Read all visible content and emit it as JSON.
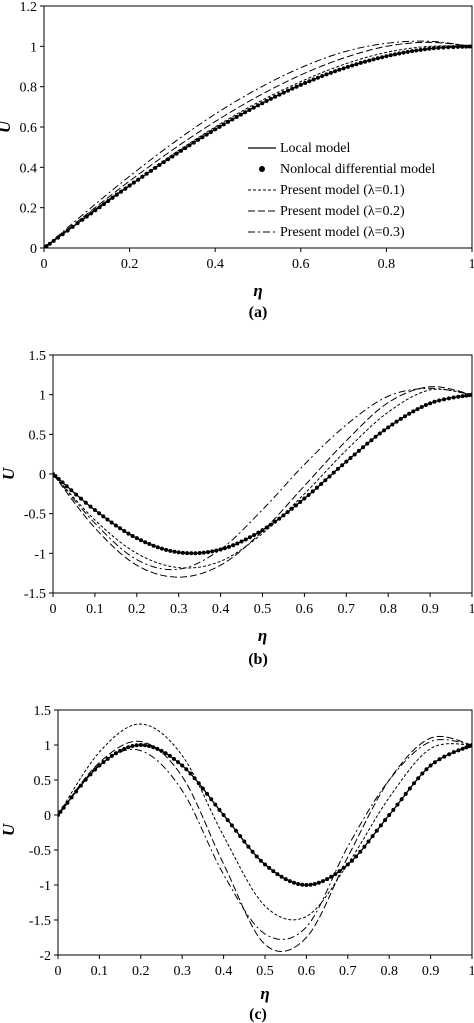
{
  "chart_data": [
    {
      "type": "line",
      "panel_label": "(a)",
      "xlabel": "η",
      "ylabel": "U",
      "xlim": [
        0,
        1
      ],
      "ylim": [
        0,
        1.2
      ],
      "xticks": [
        "0",
        "0.2",
        "0.4",
        "0.6",
        "0.8",
        "1"
      ],
      "yticks": [
        "0",
        "0.2",
        "0.4",
        "0.6",
        "0.8",
        "1",
        "1.2"
      ],
      "legend_position": "bottom-right",
      "legend": [
        "Local model",
        "Nonlocal differential model",
        "Present model (λ=0.1)",
        "Present model (λ=0.2)",
        "Present model (λ=0.3)"
      ],
      "x": [
        0,
        0.1,
        0.2,
        0.3,
        0.4,
        0.5,
        0.6,
        0.7,
        0.8,
        0.9,
        1.0
      ],
      "series": [
        {
          "name": "Local model",
          "style": "solid",
          "values": [
            0,
            0.156,
            0.309,
            0.454,
            0.588,
            0.707,
            0.809,
            0.891,
            0.951,
            0.988,
            1.0
          ]
        },
        {
          "name": "Nonlocal differential model",
          "style": "dots",
          "values": [
            0,
            0.156,
            0.309,
            0.454,
            0.588,
            0.707,
            0.809,
            0.891,
            0.951,
            0.988,
            1.0
          ]
        },
        {
          "name": "Present model (λ=0.1)",
          "style": "dash-short",
          "values": [
            0,
            0.16,
            0.316,
            0.463,
            0.6,
            0.722,
            0.825,
            0.91,
            0.97,
            1.0,
            1.0
          ]
        },
        {
          "name": "Present model (λ=0.2)",
          "style": "dash-long",
          "values": [
            0,
            0.168,
            0.332,
            0.486,
            0.627,
            0.752,
            0.858,
            0.942,
            1.0,
            1.02,
            1.0
          ]
        },
        {
          "name": "Present model (λ=0.3)",
          "style": "dash-dot",
          "values": [
            0,
            0.182,
            0.356,
            0.518,
            0.664,
            0.79,
            0.894,
            0.972,
            1.015,
            1.025,
            1.0
          ]
        }
      ]
    },
    {
      "type": "line",
      "panel_label": "(b)",
      "xlabel": "η",
      "ylabel": "U",
      "xlim": [
        0,
        1
      ],
      "ylim": [
        -1.5,
        1.5
      ],
      "xticks": [
        "0",
        "0.1",
        "0.2",
        "0.3",
        "0.4",
        "0.5",
        "0.6",
        "0.7",
        "0.8",
        "0.9",
        "1"
      ],
      "yticks": [
        "-1.5",
        "-1",
        "-0.5",
        "0",
        "0.5",
        "1",
        "1.5"
      ],
      "x": [
        0,
        0.1,
        0.2,
        0.3,
        0.4,
        0.5,
        0.6,
        0.7,
        0.8,
        0.9,
        1.0
      ],
      "series": [
        {
          "name": "Local model",
          "style": "solid",
          "values": [
            0,
            -0.454,
            -0.809,
            -0.988,
            -0.951,
            -0.707,
            -0.309,
            0.156,
            0.588,
            0.891,
            1.0
          ]
        },
        {
          "name": "Nonlocal differential model",
          "style": "dots",
          "values": [
            0,
            -0.454,
            -0.809,
            -0.988,
            -0.951,
            -0.707,
            -0.309,
            0.156,
            0.588,
            0.891,
            1.0
          ]
        },
        {
          "name": "Present model (λ=0.1)",
          "style": "dash-short",
          "values": [
            0,
            -0.58,
            -1.0,
            -1.18,
            -1.1,
            -0.75,
            -0.25,
            0.3,
            0.78,
            1.06,
            1.0
          ]
        },
        {
          "name": "Present model (λ=0.2)",
          "style": "dash-long",
          "values": [
            0,
            -0.68,
            -1.15,
            -1.3,
            -1.15,
            -0.72,
            -0.15,
            0.42,
            0.9,
            1.1,
            1.0
          ]
        },
        {
          "name": "Present model (λ=0.3)",
          "style": "dash-dot",
          "values": [
            0,
            -0.62,
            -1.08,
            -1.2,
            -0.95,
            -0.45,
            0.12,
            0.62,
            0.98,
            1.08,
            1.0
          ]
        }
      ]
    },
    {
      "type": "line",
      "panel_label": "(c)",
      "xlabel": "η",
      "ylabel": "U",
      "xlim": [
        0,
        1
      ],
      "ylim": [
        -2,
        1.5
      ],
      "xticks": [
        "0",
        "0.1",
        "0.2",
        "0.3",
        "0.4",
        "0.5",
        "0.6",
        "0.7",
        "0.8",
        "0.9",
        "1"
      ],
      "yticks": [
        "-2",
        "-1.5",
        "-1",
        "-0.5",
        "0",
        "0.5",
        "1",
        "1.5"
      ],
      "x": [
        0,
        0.1,
        0.2,
        0.3,
        0.4,
        0.5,
        0.6,
        0.7,
        0.8,
        0.9,
        1.0
      ],
      "series": [
        {
          "name": "Local model",
          "style": "solid",
          "values": [
            0,
            0.707,
            1.0,
            0.707,
            0,
            -0.707,
            -1.0,
            -0.707,
            0,
            0.707,
            1.0
          ]
        },
        {
          "name": "Nonlocal differential model",
          "style": "dots",
          "values": [
            0,
            0.707,
            1.0,
            0.707,
            0,
            -0.707,
            -1.0,
            -0.707,
            0,
            0.707,
            1.0
          ]
        },
        {
          "name": "Present model (λ=0.1)",
          "style": "dash-short",
          "values": [
            0,
            0.9,
            1.3,
            0.85,
            -0.3,
            -1.3,
            -1.45,
            -0.7,
            0.25,
            0.95,
            1.0
          ]
        },
        {
          "name": "Present model (λ=0.2)",
          "style": "dash-long",
          "values": [
            0,
            0.75,
            1.05,
            0.55,
            -0.7,
            -1.85,
            -1.75,
            -0.6,
            0.5,
            1.1,
            1.0
          ]
        },
        {
          "name": "Present model (λ=0.3)",
          "style": "dash-dot",
          "values": [
            0,
            0.72,
            0.92,
            0.35,
            -0.85,
            -1.7,
            -1.6,
            -0.45,
            0.5,
            1.05,
            1.0
          ]
        }
      ]
    }
  ]
}
